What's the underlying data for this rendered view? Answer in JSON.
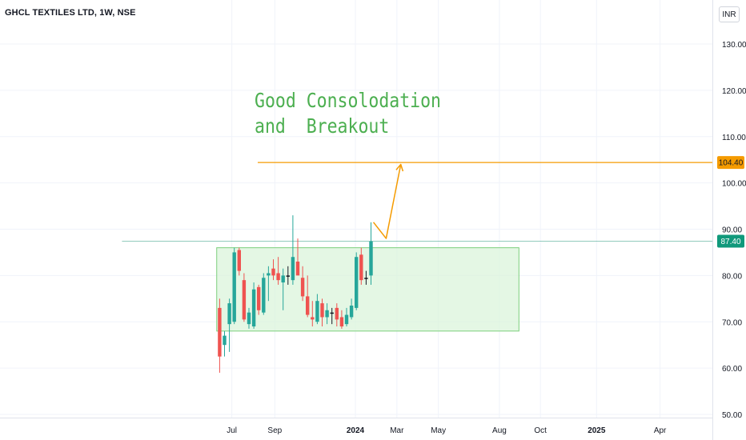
{
  "header": {
    "title": "GHCL TEXTILES LTD, 1W, NSE",
    "currency": "INR"
  },
  "annotation": {
    "lines": [
      "Good Consolodation",
      "and  Breakout"
    ]
  },
  "colors": {
    "up": "#26a69a",
    "down": "#ef5350",
    "doji": "#131722",
    "box_fill": "#d8f3d8",
    "box_stroke": "#7ccf7c",
    "target": "#f59b00",
    "text_green": "#4caf50",
    "price_line": "#2e9a80"
  },
  "chart_data": {
    "type": "candlestick",
    "title": "GHCL TEXTILES LTD, 1W, NSE",
    "currency": "INR",
    "ylim": [
      50,
      130
    ],
    "yticks": [
      "130.00",
      "120.00",
      "110.00",
      "100.00",
      "90.00",
      "80.00",
      "70.00",
      "60.00",
      "50.00"
    ],
    "xticks": [
      {
        "label": "Jul",
        "week": 2.5,
        "bold": false
      },
      {
        "label": "Sep",
        "week": 11.3,
        "bold": false
      },
      {
        "label": "2024",
        "week": 27.8,
        "bold": true
      },
      {
        "label": "Mar",
        "week": 36.3,
        "bold": false
      },
      {
        "label": "May",
        "week": 44.8,
        "bold": false
      },
      {
        "label": "Aug",
        "week": 57.3,
        "bold": false
      },
      {
        "label": "Oct",
        "week": 65.7,
        "bold": false
      },
      {
        "label": "2025",
        "week": 77.2,
        "bold": true
      },
      {
        "label": "Apr",
        "week": 90.2,
        "bold": false
      }
    ],
    "candles": [
      {
        "o": 73.0,
        "h": 75.0,
        "l": 59.0,
        "c": 62.5
      },
      {
        "o": 65.0,
        "h": 68.0,
        "l": 62.5,
        "c": 67.0
      },
      {
        "o": 69.5,
        "h": 75.0,
        "l": 63.5,
        "c": 74.0
      },
      {
        "o": 70.0,
        "h": 86.0,
        "l": 69.5,
        "c": 85.0
      },
      {
        "o": 85.5,
        "h": 86.0,
        "l": 80.0,
        "c": 81.0
      },
      {
        "o": 79.0,
        "h": 80.5,
        "l": 70.0,
        "c": 70.5
      },
      {
        "o": 69.5,
        "h": 73.0,
        "l": 68.5,
        "c": 72.0
      },
      {
        "o": 69.0,
        "h": 78.5,
        "l": 68.5,
        "c": 77.0
      },
      {
        "o": 77.5,
        "h": 78.0,
        "l": 71.5,
        "c": 72.5
      },
      {
        "o": 72.0,
        "h": 80.5,
        "l": 71.5,
        "c": 79.5
      },
      {
        "o": 80.0,
        "h": 82.0,
        "l": 74.5,
        "c": 80.5
      },
      {
        "o": 81.5,
        "h": 83.5,
        "l": 79.0,
        "c": 80.0
      },
      {
        "o": 80.5,
        "h": 84.0,
        "l": 78.0,
        "c": 79.0
      },
      {
        "o": 78.5,
        "h": 81.5,
        "l": 72.5,
        "c": 80.0
      },
      {
        "o": 80.0,
        "h": 82.0,
        "l": 78.0,
        "c": 80.0
      },
      {
        "o": 79.0,
        "h": 93.0,
        "l": 78.0,
        "c": 84.0
      },
      {
        "o": 83.0,
        "h": 88.0,
        "l": 80.5,
        "c": 80.0
      },
      {
        "o": 79.5,
        "h": 82.0,
        "l": 74.5,
        "c": 75.5
      },
      {
        "o": 75.5,
        "h": 80.0,
        "l": 71.0,
        "c": 71.5
      },
      {
        "o": 71.0,
        "h": 74.5,
        "l": 69.0,
        "c": 70.5
      },
      {
        "o": 70.0,
        "h": 76.0,
        "l": 69.5,
        "c": 74.5
      },
      {
        "o": 74.0,
        "h": 75.0,
        "l": 69.0,
        "c": 71.0
      },
      {
        "o": 71.0,
        "h": 74.0,
        "l": 69.5,
        "c": 72.5
      },
      {
        "o": 72.0,
        "h": 73.0,
        "l": 69.5,
        "c": 72.0
      },
      {
        "o": 73.0,
        "h": 74.0,
        "l": 69.0,
        "c": 70.5
      },
      {
        "o": 71.0,
        "h": 72.5,
        "l": 68.5,
        "c": 69.0
      },
      {
        "o": 69.5,
        "h": 73.0,
        "l": 69.0,
        "c": 71.5
      },
      {
        "o": 71.0,
        "h": 75.0,
        "l": 70.5,
        "c": 73.5
      },
      {
        "o": 73.0,
        "h": 85.0,
        "l": 72.5,
        "c": 84.0
      },
      {
        "o": 84.5,
        "h": 86.0,
        "l": 78.0,
        "c": 79.0
      },
      {
        "o": 79.5,
        "h": 81.0,
        "l": 78.0,
        "c": 79.5
      },
      {
        "o": 80.0,
        "h": 91.5,
        "l": 78.0,
        "c": 87.4
      }
    ],
    "box": {
      "week_start": -0.6,
      "week_end": 61.3,
      "low": 68.0,
      "high": 86.0
    },
    "horizontal_lines": [
      {
        "name": "target",
        "value": 104.4,
        "label": "104.40",
        "week_start": 7.8
      },
      {
        "name": "last-price",
        "value": 87.4,
        "label": "87.40",
        "week_start": -20
      }
    ],
    "arrow": [
      {
        "week": 31.5,
        "value": 91.5
      },
      {
        "week": 34.1,
        "value": 88.0
      },
      {
        "week": 37.1,
        "value": 104.0
      }
    ],
    "grid": true
  }
}
